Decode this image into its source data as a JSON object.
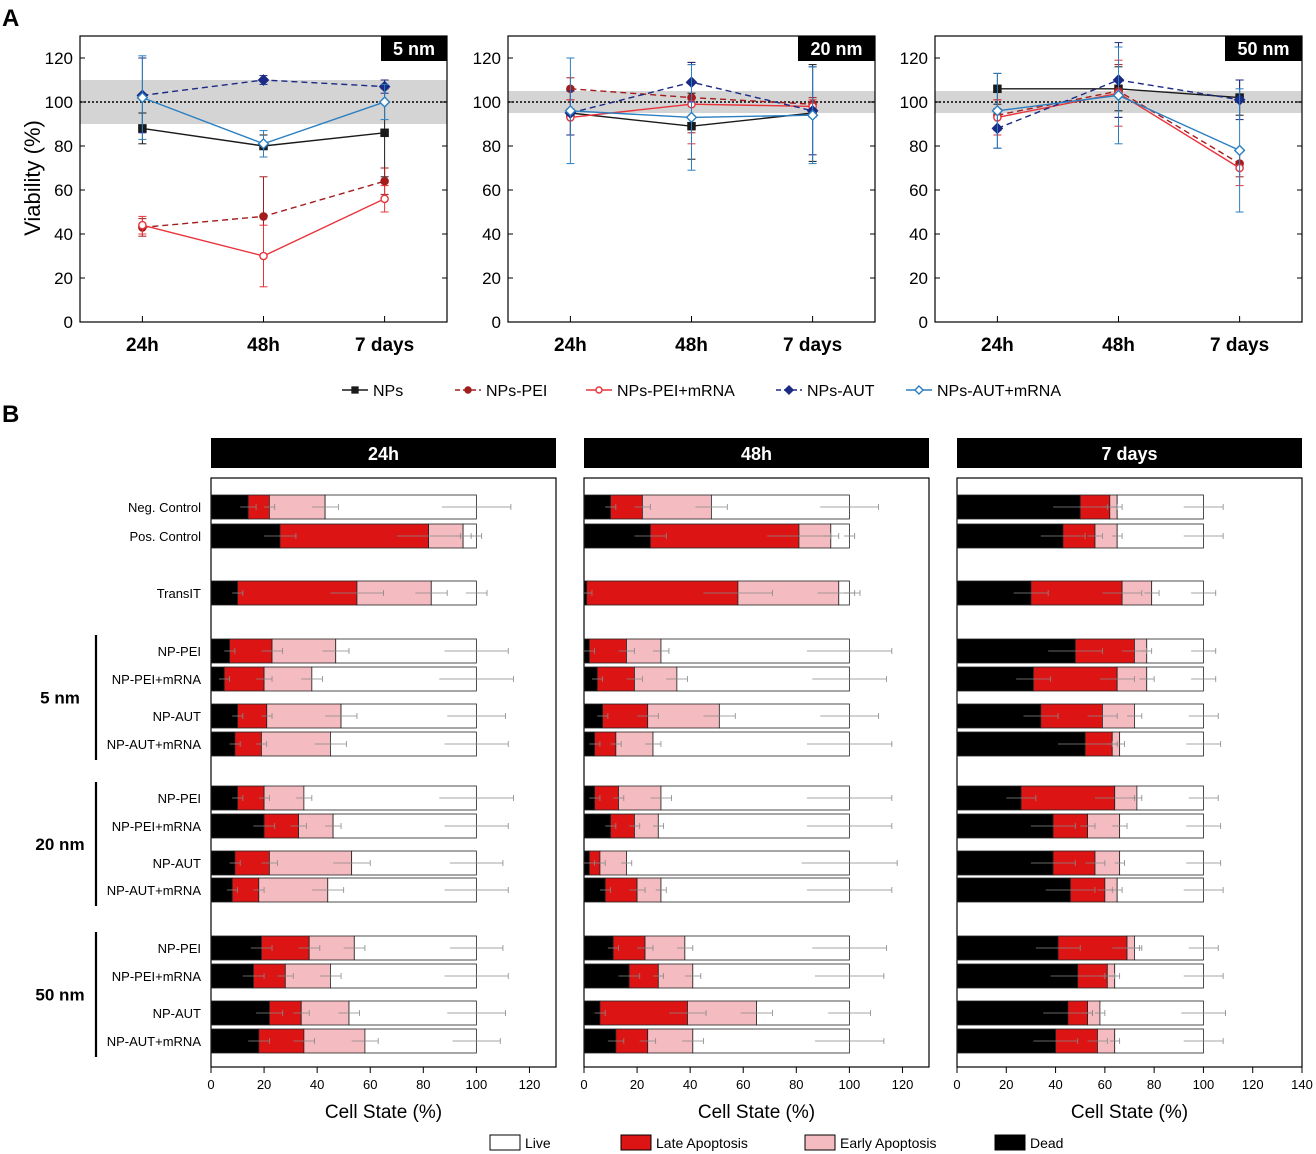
{
  "panel_labels": {
    "a": "A",
    "b": "B"
  },
  "chart_data": [
    {
      "type": "line",
      "panel": "A",
      "ylabel": "Viability (%)",
      "ylim": [
        0,
        130
      ],
      "yticks": [
        0,
        20,
        40,
        60,
        80,
        100,
        120
      ],
      "categories": [
        "24h",
        "48h",
        "7 days"
      ],
      "reference_line": 100,
      "legend": [
        {
          "name": "NPs",
          "color": "#1a1a1a",
          "marker": "square",
          "dash": false,
          "filled": true
        },
        {
          "name": "NPs-PEI",
          "color": "#a31d1d",
          "marker": "circle",
          "dash": true,
          "filled": true
        },
        {
          "name": "NPs-PEI+mRNA",
          "color": "#e8333a",
          "marker": "circle",
          "dash": false,
          "filled": false
        },
        {
          "name": "NPs-AUT",
          "color": "#1b2a85",
          "marker": "diamond",
          "dash": true,
          "filled": true
        },
        {
          "name": "NPs-AUT+mRNA",
          "color": "#2b7fc0",
          "marker": "diamond",
          "dash": false,
          "filled": false
        }
      ],
      "subplots": [
        {
          "title": "5 nm",
          "band": [
            90,
            110
          ],
          "series": [
            {
              "name": "NPs",
              "values": [
                88,
                80,
                86
              ],
              "errors": [
                7,
                5,
                20
              ]
            },
            {
              "name": "NPs-PEI",
              "values": [
                43,
                48,
                64
              ],
              "errors": [
                4,
                18,
                6
              ]
            },
            {
              "name": "NPs-PEI+mRNA",
              "values": [
                44,
                30,
                56
              ],
              "errors": [
                4,
                14,
                6
              ]
            },
            {
              "name": "NPs-AUT",
              "values": [
                103,
                110,
                107
              ],
              "errors": [
                17,
                2,
                3
              ]
            },
            {
              "name": "NPs-AUT+mRNA",
              "values": [
                102,
                81,
                100
              ],
              "errors": [
                19,
                6,
                8
              ]
            }
          ]
        },
        {
          "title": "20 nm",
          "band": [
            95,
            105
          ],
          "series": [
            {
              "name": "NPs",
              "values": [
                95,
                89,
                95
              ],
              "errors": [
                10,
                15,
                22
              ]
            },
            {
              "name": "NPs-PEI",
              "values": [
                106,
                102,
                99
              ],
              "errors": [
                5,
                16,
                3
              ]
            },
            {
              "name": "NPs-PEI+mRNA",
              "values": [
                93,
                99,
                98
              ],
              "errors": [
                8,
                18,
                3
              ]
            },
            {
              "name": "NPs-AUT",
              "values": [
                95,
                109,
                96
              ],
              "errors": [
                10,
                9,
                20
              ]
            },
            {
              "name": "NPs-AUT+mRNA",
              "values": [
                96,
                93,
                94
              ],
              "errors": [
                24,
                24,
                22
              ]
            }
          ]
        },
        {
          "title": "50 nm",
          "band": [
            95,
            105
          ],
          "series": [
            {
              "name": "NPs",
              "values": [
                106,
                106,
                102
              ],
              "errors": [
                7,
                10,
                8
              ]
            },
            {
              "name": "NPs-PEI",
              "values": [
                94,
                105,
                72
              ],
              "errors": [
                7,
                12,
                6
              ]
            },
            {
              "name": "NPs-PEI+mRNA",
              "values": [
                93,
                104,
                70
              ],
              "errors": [
                8,
                15,
                8
              ]
            },
            {
              "name": "NPs-AUT",
              "values": [
                88,
                110,
                101
              ],
              "errors": [
                9,
                17,
                9
              ]
            },
            {
              "name": "NPs-AUT+mRNA",
              "values": [
                96,
                103,
                78
              ],
              "errors": [
                17,
                22,
                28
              ]
            }
          ]
        }
      ]
    },
    {
      "type": "bar",
      "panel": "B",
      "orientation": "horizontal",
      "stacked": true,
      "xlabel": "Cell State (%)",
      "stack_order": [
        "Dead",
        "Late Apoptosis",
        "Early Apoptosis",
        "Live"
      ],
      "legend": [
        {
          "name": "Live",
          "color": "#ffffff"
        },
        {
          "name": "Late Apoptosis",
          "color": "#dc1414"
        },
        {
          "name": "Early Apoptosis",
          "color": "#f4bcc0"
        },
        {
          "name": "Dead",
          "color": "#000000"
        }
      ],
      "categories": [
        "Neg. Control",
        "Pos. Control",
        "TransIT",
        "NP-PEI",
        "NP-PEI+mRNA",
        "NP-AUT",
        "NP-AUT+mRNA",
        "NP-PEI",
        "NP-PEI+mRNA",
        "NP-AUT",
        "NP-AUT+mRNA",
        "NP-PEI",
        "NP-PEI+mRNA",
        "NP-AUT",
        "NP-AUT+mRNA"
      ],
      "groups": [
        {
          "label": "5 nm",
          "categories": [
            3,
            4,
            5,
            6
          ]
        },
        {
          "label": "20 nm",
          "categories": [
            7,
            8,
            9,
            10
          ]
        },
        {
          "label": "50 nm",
          "categories": [
            11,
            12,
            13,
            14
          ]
        }
      ],
      "subplots": [
        {
          "title": "24h",
          "xlim": [
            0,
            130
          ],
          "xticks": [
            0,
            20,
            40,
            60,
            80,
            100,
            120
          ],
          "bars": [
            {
              "dead": 14,
              "late": 8,
              "early": 21,
              "live": 57
            },
            {
              "dead": 26,
              "late": 56,
              "early": 13,
              "live": 5
            },
            {
              "dead": 10,
              "late": 45,
              "early": 28,
              "live": 17
            },
            {
              "dead": 7,
              "late": 16,
              "early": 24,
              "live": 53
            },
            {
              "dead": 5,
              "late": 15,
              "early": 18,
              "live": 62
            },
            {
              "dead": 10,
              "late": 11,
              "early": 28,
              "live": 51
            },
            {
              "dead": 9,
              "late": 10,
              "early": 26,
              "live": 55
            },
            {
              "dead": 10,
              "late": 10,
              "early": 15,
              "live": 65
            },
            {
              "dead": 20,
              "late": 13,
              "early": 13,
              "live": 54
            },
            {
              "dead": 9,
              "late": 13,
              "early": 31,
              "live": 47
            },
            {
              "dead": 8,
              "late": 10,
              "early": 26,
              "live": 56
            },
            {
              "dead": 19,
              "late": 18,
              "early": 17,
              "live": 46
            },
            {
              "dead": 16,
              "late": 12,
              "early": 17,
              "live": 55
            },
            {
              "dead": 22,
              "late": 12,
              "early": 18,
              "live": 48
            },
            {
              "dead": 18,
              "late": 17,
              "early": 23,
              "live": 42
            }
          ]
        },
        {
          "title": "48h",
          "xlim": [
            0,
            130
          ],
          "xticks": [
            0,
            20,
            40,
            60,
            80,
            100,
            120
          ],
          "bars": [
            {
              "dead": 10,
              "late": 12,
              "early": 26,
              "live": 52
            },
            {
              "dead": 25,
              "late": 56,
              "early": 12,
              "live": 7
            },
            {
              "dead": 1,
              "late": 57,
              "early": 38,
              "live": 4
            },
            {
              "dead": 2,
              "late": 14,
              "early": 13,
              "live": 71
            },
            {
              "dead": 5,
              "late": 14,
              "early": 16,
              "live": 65
            },
            {
              "dead": 7,
              "late": 17,
              "early": 27,
              "live": 49
            },
            {
              "dead": 4,
              "late": 8,
              "early": 14,
              "live": 74
            },
            {
              "dead": 4,
              "late": 9,
              "early": 16,
              "live": 71
            },
            {
              "dead": 10,
              "late": 9,
              "early": 9,
              "live": 72
            },
            {
              "dead": 2,
              "late": 4,
              "early": 10,
              "live": 84
            },
            {
              "dead": 8,
              "late": 12,
              "early": 9,
              "live": 71
            },
            {
              "dead": 11,
              "late": 12,
              "early": 15,
              "live": 62
            },
            {
              "dead": 17,
              "late": 11,
              "early": 13,
              "live": 59
            },
            {
              "dead": 6,
              "late": 33,
              "early": 26,
              "live": 35
            },
            {
              "dead": 12,
              "late": 12,
              "early": 17,
              "live": 59
            }
          ]
        },
        {
          "title": "7 days",
          "xlim": [
            0,
            140
          ],
          "xticks": [
            0,
            20,
            40,
            60,
            80,
            100,
            120,
            140
          ],
          "bars": [
            {
              "dead": 50,
              "late": 12,
              "early": 3,
              "live": 35
            },
            {
              "dead": 43,
              "late": 13,
              "early": 9,
              "live": 35
            },
            {
              "dead": 30,
              "late": 37,
              "early": 12,
              "live": 21
            },
            {
              "dead": 48,
              "late": 24,
              "early": 5,
              "live": 23
            },
            {
              "dead": 31,
              "late": 34,
              "early": 12,
              "live": 23
            },
            {
              "dead": 34,
              "late": 25,
              "early": 13,
              "live": 28
            },
            {
              "dead": 52,
              "late": 11,
              "early": 3,
              "live": 34
            },
            {
              "dead": 26,
              "late": 38,
              "early": 9,
              "live": 27
            },
            {
              "dead": 39,
              "late": 14,
              "early": 13,
              "live": 34
            },
            {
              "dead": 39,
              "late": 17,
              "early": 10,
              "live": 34
            },
            {
              "dead": 46,
              "late": 14,
              "early": 5,
              "live": 35
            },
            {
              "dead": 41,
              "late": 28,
              "early": 3,
              "live": 28
            },
            {
              "dead": 49,
              "late": 12,
              "early": 3,
              "live": 36
            },
            {
              "dead": 45,
              "late": 8,
              "early": 5,
              "live": 42
            },
            {
              "dead": 40,
              "late": 17,
              "early": 7,
              "live": 36
            }
          ]
        }
      ]
    }
  ]
}
